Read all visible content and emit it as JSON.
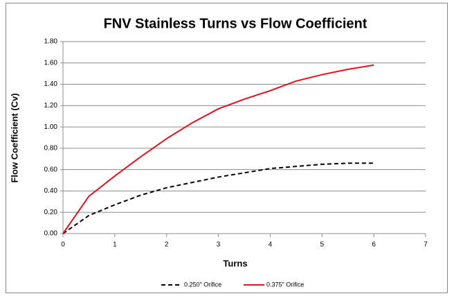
{
  "chart_data": {
    "type": "line",
    "title": "FNV Stainless Turns vs Flow Coefficient",
    "x_label": "Turns",
    "y_label": "Flow Coefficient (Cv)",
    "x": [
      0,
      0.5,
      1,
      1.5,
      2,
      2.5,
      3,
      3.5,
      4,
      4.5,
      5,
      5.5,
      6
    ],
    "series": [
      {
        "name": "0.250\" Orifice",
        "color": "#000000",
        "dashed": true,
        "values": [
          0,
          0.17,
          0.27,
          0.36,
          0.43,
          0.48,
          0.53,
          0.57,
          0.61,
          0.63,
          0.65,
          0.66,
          0.66
        ]
      },
      {
        "name": "0.375\" Orifice",
        "color": "#e0101e",
        "dashed": false,
        "values": [
          0,
          0.35,
          0.54,
          0.72,
          0.89,
          1.04,
          1.17,
          1.26,
          1.34,
          1.43,
          1.49,
          1.54,
          1.58
        ]
      }
    ],
    "xlim": [
      0,
      7
    ],
    "xticks": [
      0,
      1,
      2,
      3,
      4,
      5,
      6,
      7
    ],
    "ylim": [
      0,
      1.8
    ],
    "yticks": [
      {
        "value": 0,
        "label": "0.00"
      },
      {
        "value": 0.2,
        "label": "0.20"
      },
      {
        "value": 0.4,
        "label": "0.40"
      },
      {
        "value": 0.6,
        "label": "0.60"
      },
      {
        "value": 0.8,
        "label": "0.80"
      },
      {
        "value": 1,
        "label": "1.00"
      },
      {
        "value": 1.2,
        "label": "1.20"
      },
      {
        "value": 1.4,
        "label": "1.40"
      },
      {
        "value": 1.6,
        "label": "1.60"
      },
      {
        "value": 1.8,
        "label": "1.80"
      }
    ],
    "grid": true,
    "legend": "bottom"
  }
}
